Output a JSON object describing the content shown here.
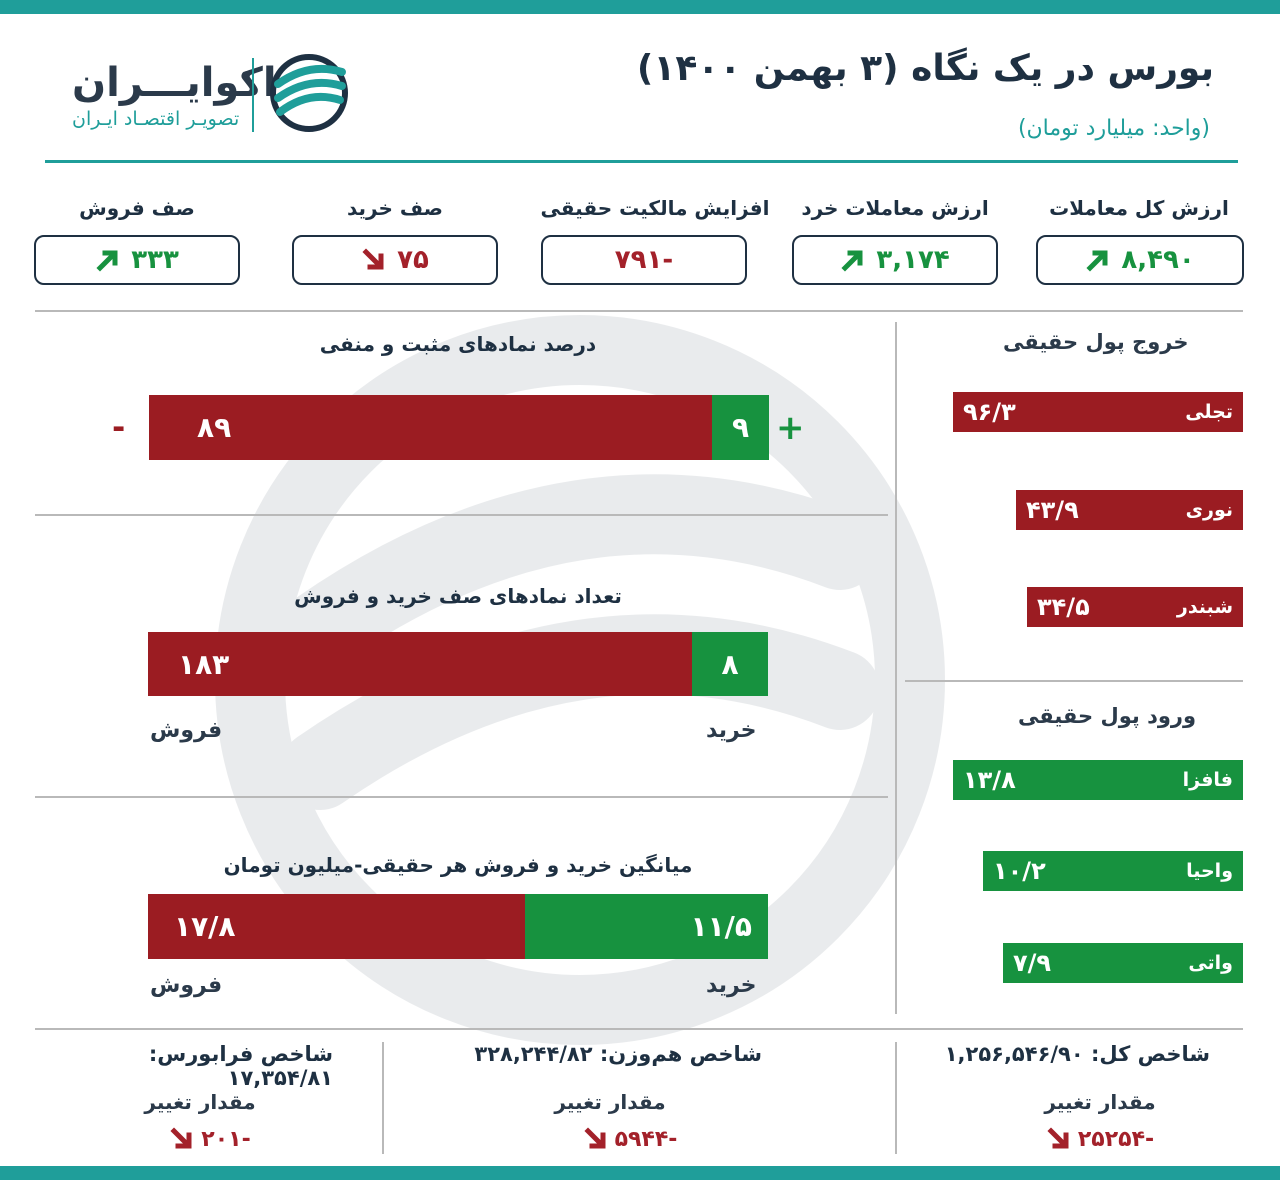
{
  "header": {
    "title": "بورس در یک نگاه (۳ بهمن ۱۴۰۰)",
    "unit": "(واحد: میلیارد تومان)"
  },
  "logo": {
    "name": "اکوایـــران",
    "subtitle": "تصویـر اقتصـاد ایـران"
  },
  "stats": [
    {
      "label": "ارزش کل معاملات",
      "value": "۸,۴۹۰",
      "trend": "up"
    },
    {
      "label": "ارزش معاملات خرد",
      "value": "۳,۱۷۴",
      "trend": "up"
    },
    {
      "label": "افزایش مالکیت حقیقی",
      "value": "-۷۹۱",
      "trend": "none"
    },
    {
      "label": "صف خرید",
      "value": "۷۵",
      "trend": "down"
    },
    {
      "label": "صف فروش",
      "value": "۳۳۳",
      "trend": "up"
    }
  ],
  "symbols_percent": {
    "title": "درصد نمادهای مثبت و منفی",
    "positive_value": "۹",
    "negative_value": "۸۹",
    "plus_sign": "+",
    "minus_sign": "-",
    "positive": 9,
    "negative": 89
  },
  "queues": {
    "title": "تعداد نمادهای صف خرید و فروش",
    "buy_value": "۸",
    "sell_value": "۱۸۳",
    "buy_label": "خرید",
    "sell_label": "فروش",
    "buy": 8,
    "sell": 183
  },
  "avg_trade": {
    "title": "میانگین خرید و فروش هر حقیقی-میلیون تومان",
    "buy_value": "۱۱/۵",
    "sell_value": "۱۷/۸",
    "buy_label": "خرید",
    "sell_label": "فروش",
    "buy": 11.5,
    "sell": 17.8
  },
  "outflow": {
    "title": "خروج پول حقیقی",
    "items": [
      {
        "name": "تجلی",
        "value": "۹۶/۳",
        "amount": 96.3
      },
      {
        "name": "نوری",
        "value": "۴۳/۹",
        "amount": 43.9
      },
      {
        "name": "شبندر",
        "value": "۳۴/۵",
        "amount": 34.5
      }
    ]
  },
  "inflow": {
    "title": "ورود پول حقیقی",
    "items": [
      {
        "name": "فافزا",
        "value": "۱۳/۸",
        "amount": 13.8
      },
      {
        "name": "واحیا",
        "value": "۱۰/۲",
        "amount": 10.2
      },
      {
        "name": "واتی",
        "value": "۷/۹",
        "amount": 7.9
      }
    ]
  },
  "indices": [
    {
      "name": "شاخص کل: ۱,۲۵۶,۵۴۶/۹۰",
      "change_label": "مقدار تغییر",
      "change": "-۲۵۲۵۴"
    },
    {
      "name": "شاخص هم‌وزن: ۳۲۸,۲۴۴/۸۲",
      "change_label": "مقدار تغییر",
      "change": "-۵۹۴۴"
    },
    {
      "name": "شاخص فرابورس: ۱۷,۳۵۴/۸۱",
      "change_label": "مقدار تغییر",
      "change": "-۲۰۱"
    }
  ],
  "colors": {
    "accent": "#1f9e9a",
    "positive": "#17923f",
    "negative": "#9b1c22",
    "text": "#1e3042"
  }
}
